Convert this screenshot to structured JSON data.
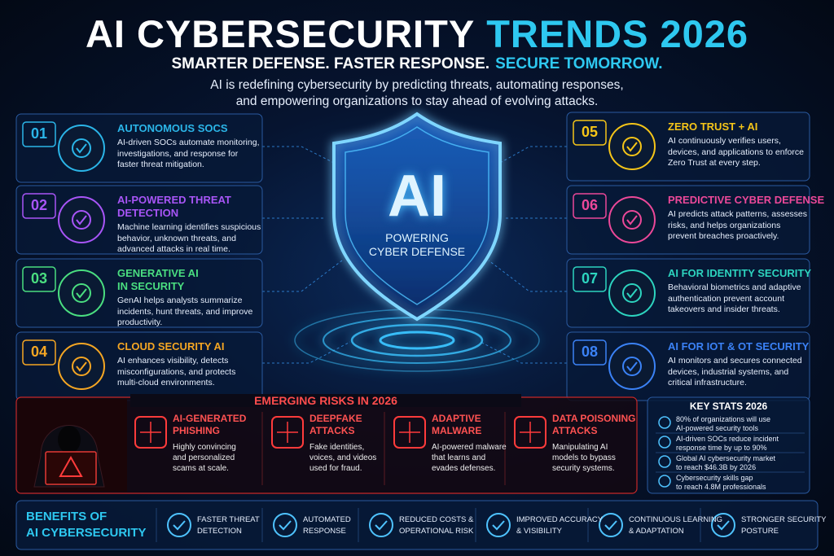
{
  "header": {
    "title_main": "AI CYBERSECURITY",
    "title_accent": "TRENDS 2026",
    "tagline_main": "SMARTER DEFENSE. FASTER RESPONSE.",
    "tagline_accent": "SECURE TOMORROW.",
    "intro_lines": [
      "AI is redefining cybersecurity by predicting threats, automating responses,",
      "and empowering organizations to stay ahead of evolving attacks."
    ]
  },
  "center": {
    "label": "AI",
    "caption_lines": [
      "POWERING",
      "CYBER DEFENSE"
    ]
  },
  "trends": [
    {
      "number": "01",
      "color": "#2bb5e8",
      "title_lines": [
        "AUTONOMOUS SOCS"
      ],
      "description_lines": [
        "AI-driven SOCs automate monitoring,",
        "investigations, and response for",
        "faster threat mitigation."
      ]
    },
    {
      "number": "02",
      "color": "#a855f7",
      "title_lines": [
        "AI-POWERED THREAT",
        "DETECTION"
      ],
      "description_lines": [
        "Machine learning identifies suspicious",
        "behavior, unknown threats, and",
        "advanced attacks in real time."
      ]
    },
    {
      "number": "03",
      "color": "#4ade80",
      "title_lines": [
        "GENERATIVE AI",
        "IN SECURITY"
      ],
      "description_lines": [
        "GenAI helps analysts summarize",
        "incidents, hunt threats, and improve",
        "productivity."
      ]
    },
    {
      "number": "04",
      "color": "#f5a623",
      "title_lines": [
        "CLOUD SECURITY AI"
      ],
      "description_lines": [
        "AI enhances visibility, detects",
        "misconfigurations, and protects",
        "multi-cloud environments."
      ]
    },
    {
      "number": "05",
      "color": "#f5c518",
      "title_lines": [
        "ZERO TRUST + AI"
      ],
      "description_lines": [
        "AI continuously verifies users,",
        "devices, and applications to enforce",
        "Zero Trust at every step."
      ]
    },
    {
      "number": "06",
      "color": "#ec4899",
      "title_lines": [
        "PREDICTIVE CYBER DEFENSE"
      ],
      "description_lines": [
        "AI predicts attack patterns, assesses",
        "risks, and helps organizations",
        "prevent breaches proactively."
      ]
    },
    {
      "number": "07",
      "color": "#2dd4bf",
      "title_lines": [
        "AI FOR IDENTITY SECURITY"
      ],
      "description_lines": [
        "Behavioral biometrics and adaptive",
        "authentication prevent account",
        "takeovers and insider threats."
      ]
    },
    {
      "number": "08",
      "color": "#3b82f6",
      "title_lines": [
        "AI FOR IOT & OT SECURITY"
      ],
      "description_lines": [
        "AI monitors and secures connected",
        "devices, industrial systems, and",
        "critical infrastructure."
      ]
    }
  ],
  "risks": {
    "title": "EMERGING RISKS IN 2026",
    "items": [
      {
        "title_lines": [
          "AI-GENERATED",
          "PHISHING"
        ],
        "description_lines": [
          "Highly convincing",
          "and personalized",
          "scams at scale."
        ]
      },
      {
        "title_lines": [
          "DEEPFAKE",
          "ATTACKS"
        ],
        "description_lines": [
          "Fake identities,",
          "voices, and videos",
          "used for fraud."
        ]
      },
      {
        "title_lines": [
          "ADAPTIVE",
          "MALWARE"
        ],
        "description_lines": [
          "AI-powered malware",
          "that learns and",
          "evades defenses."
        ]
      },
      {
        "title_lines": [
          "DATA POISONING",
          "ATTACKS"
        ],
        "description_lines": [
          "Manipulating AI",
          "models to bypass",
          "security systems."
        ]
      }
    ]
  },
  "stats": {
    "title": "KEY STATS 2026",
    "items": [
      {
        "lines": [
          "80% of organizations will use",
          "AI-powered security tools"
        ]
      },
      {
        "lines": [
          "AI-driven SOCs reduce incident",
          "response time by up to 90%"
        ]
      },
      {
        "lines": [
          "Global AI cybersecurity market",
          "to reach $46.3B by 2026"
        ]
      },
      {
        "lines": [
          "Cybersecurity skills gap",
          "to reach 4.8M professionals"
        ]
      }
    ]
  },
  "benefits": {
    "title_lines": [
      "BENEFITS OF",
      "AI CYBERSECURITY"
    ],
    "items": [
      {
        "lines": [
          "FASTER THREAT",
          "DETECTION"
        ]
      },
      {
        "lines": [
          "AUTOMATED",
          "RESPONSE"
        ]
      },
      {
        "lines": [
          "REDUCED COSTS &",
          "OPERATIONAL RISK"
        ]
      },
      {
        "lines": [
          "IMPROVED ACCURACY",
          "& VISIBILITY"
        ]
      },
      {
        "lines": [
          "CONTINUOUS LEARNING",
          "& ADAPTATION"
        ]
      },
      {
        "lines": [
          "STRONGER SECURITY",
          "POSTURE"
        ]
      }
    ]
  }
}
